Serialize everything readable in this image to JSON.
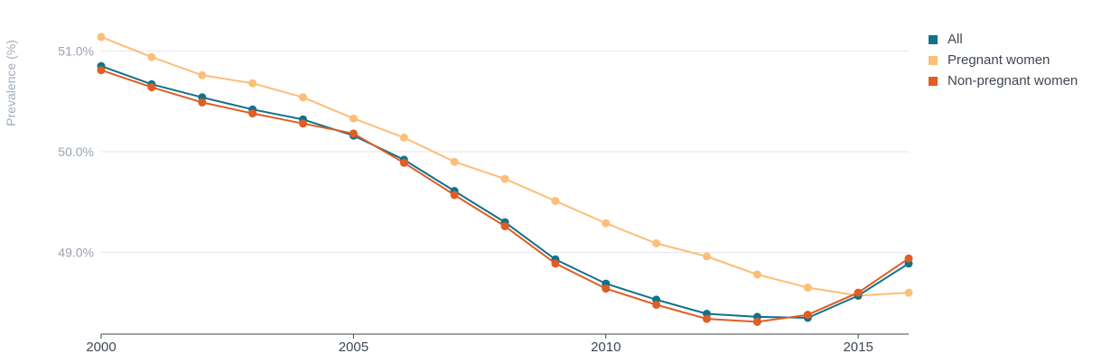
{
  "chart_data": {
    "type": "line",
    "title": "",
    "xlabel": "",
    "ylabel": "Prevalence (%)",
    "x": [
      2000,
      2001,
      2002,
      2003,
      2004,
      2005,
      2006,
      2007,
      2008,
      2009,
      2010,
      2011,
      2012,
      2013,
      2014,
      2015,
      2016
    ],
    "x_ticks": [
      "2000",
      "2005",
      "2010",
      "2015"
    ],
    "y_ticks": [
      "49.0%",
      "50.0%",
      "51.0%"
    ],
    "xlim": [
      2000,
      2016
    ],
    "ylim": [
      48.2,
      51.3
    ],
    "grid": true,
    "legend_position": "top-right",
    "series": [
      {
        "name": "All",
        "color": "#12718b",
        "values": [
          50.85,
          50.67,
          50.54,
          50.42,
          50.32,
          50.16,
          49.92,
          49.61,
          49.3,
          48.93,
          48.69,
          48.53,
          48.39,
          48.36,
          48.35,
          48.57,
          48.89
        ]
      },
      {
        "name": "Pregnant women",
        "color": "#fbbf78",
        "values": [
          51.14,
          50.94,
          50.76,
          50.68,
          50.54,
          50.33,
          50.14,
          49.9,
          49.73,
          49.51,
          49.29,
          49.09,
          48.96,
          48.78,
          48.65,
          48.57,
          48.6
        ]
      },
      {
        "name": "Non-pregnant women",
        "color": "#e05d24",
        "values": [
          50.81,
          50.64,
          50.49,
          50.38,
          50.28,
          50.18,
          49.89,
          49.57,
          49.26,
          48.89,
          48.64,
          48.48,
          48.34,
          48.31,
          48.38,
          48.6,
          48.94
        ]
      }
    ]
  }
}
